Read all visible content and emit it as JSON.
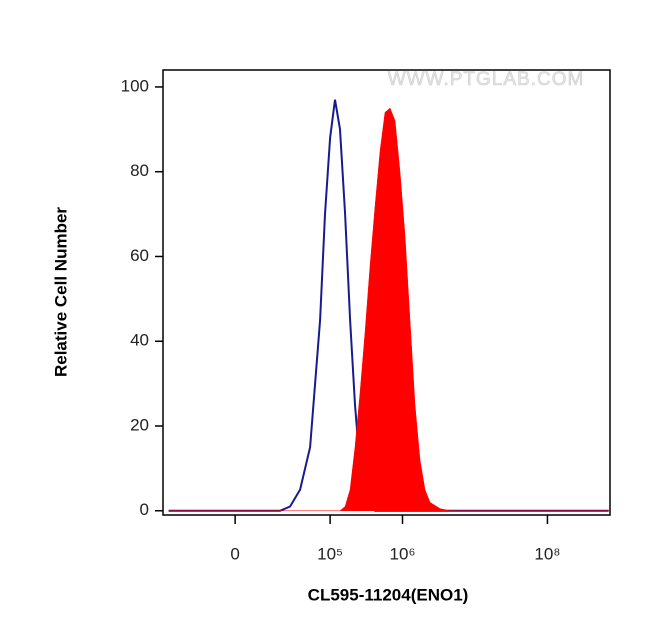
{
  "chart_data": {
    "type": "histogram-overlay",
    "xlabel": "CL595-11204(ENO1)",
    "ylabel": "Relative Cell Number",
    "watermark": "WWW.PTGLAB.COM",
    "xscale": "biexponential",
    "xlim": [
      -48000,
      730000000
    ],
    "ylim": [
      -1,
      104
    ],
    "xticks": [
      {
        "value": 0,
        "label": "0"
      },
      {
        "value": 100000,
        "label": "10⁵"
      },
      {
        "value": 1000000,
        "label": "10⁶"
      },
      {
        "value": 100000000,
        "label": "10⁸"
      }
    ],
    "yticks": [
      0,
      20,
      40,
      60,
      80,
      100
    ],
    "x": [
      -40000,
      19200,
      27200,
      38000,
      52600,
      72500,
      85000,
      100000,
      117000,
      137000,
      161000,
      189000,
      221000,
      260000,
      304000,
      357000,
      418000,
      490000,
      574000,
      673000,
      789000,
      924000,
      1083000,
      1270000,
      1489000,
      1745000,
      2045000,
      2397000,
      3293000,
      4528000,
      700000000
    ],
    "series": [
      {
        "color": "#1a1a8c",
        "filled": false,
        "values": [
          0,
          0,
          1,
          5,
          15,
          45,
          70,
          88,
          97,
          90,
          70,
          45,
          25,
          10,
          4,
          1,
          0,
          0,
          0,
          0,
          0,
          0,
          0,
          0,
          0,
          0,
          0,
          0,
          0,
          0,
          0
        ]
      },
      {
        "color": "#ff0000",
        "filled": true,
        "values": [
          0,
          0,
          0,
          0,
          0,
          0,
          0,
          0,
          0,
          0,
          1,
          5,
          15,
          28,
          42,
          58,
          72,
          85,
          94,
          95,
          92,
          80,
          65,
          45,
          25,
          12,
          5,
          2,
          0.5,
          0,
          0
        ]
      }
    ]
  }
}
